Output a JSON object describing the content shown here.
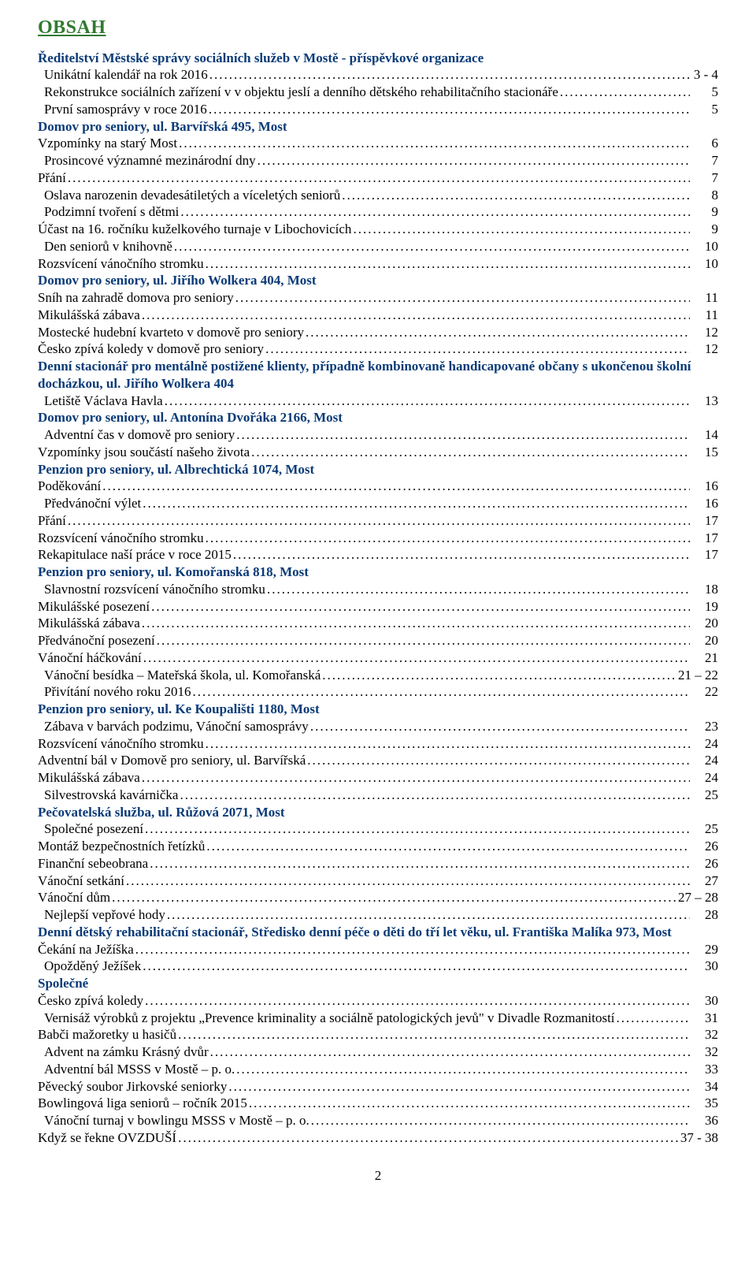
{
  "title": "OBSAH",
  "page_number": "2",
  "colors": {
    "heading_green": "#317a31",
    "section_blue": "#0b3b78",
    "text": "#000000",
    "bg": "#ffffff"
  },
  "sections": [
    {
      "heading": "Ředitelství Městské správy sociálních služeb v Mostě - příspěvkové organizace",
      "entries": [
        {
          "label": "Unikátní kalendář na rok 2016",
          "page": "3 - 4",
          "indent": true
        },
        {
          "label": "Rekonstrukce sociálních zařízení v v objektu jeslí a denního dětského rehabilitačního stacionáře",
          "page": "5",
          "indent": true
        },
        {
          "label": "První samosprávy v roce 2016",
          "page": "5",
          "indent": true
        }
      ]
    },
    {
      "heading": "Domov pro seniory, ul. Barvířská 495, Most",
      "entries": [
        {
          "label": "Vzpomínky na starý Most",
          "page": "6",
          "indent": false
        },
        {
          "label": "Prosincové významné mezinárodní dny",
          "page": "7",
          "indent": true
        },
        {
          "label": "Přání",
          "page": "7",
          "indent": false
        },
        {
          "label": "Oslava narozenin devadesátiletých a víceletých seniorů",
          "page": "8",
          "indent": true
        },
        {
          "label": "Podzimní tvoření s dětmi",
          "page": "9",
          "indent": true
        },
        {
          "label": "Účast na 16. ročníku kuželkového turnaje v Libochovicích",
          "page": "9",
          "indent": false
        },
        {
          "label": "Den seniorů v knihovně",
          "page": "10",
          "indent": true
        },
        {
          "label": "Rozsvícení vánočního stromku",
          "page": "10",
          "indent": false
        }
      ]
    },
    {
      "heading": "Domov pro seniory, ul. Jiřího Wolkera 404, Most",
      "entries": [
        {
          "label": "Sníh na zahradě domova pro seniory",
          "page": "11",
          "indent": false
        },
        {
          "label": "Mikulášská zábava",
          "page": "11",
          "indent": false
        },
        {
          "label": "Mostecké hudební kvarteto v domově pro seniory",
          "page": "12",
          "indent": false
        },
        {
          "label": "Česko zpívá koledy v domově pro seniory",
          "page": "12",
          "indent": false
        }
      ]
    },
    {
      "heading": "Denní stacionář pro mentálně postižené klienty, případně kombinovaně handicapované občany s ukončenou školní docházkou, ul. Jiřího Wolkera 404",
      "entries": [
        {
          "label": "Letiště Václava Havla",
          "page": "13",
          "indent": true
        }
      ]
    },
    {
      "heading": "Domov pro seniory, ul. Antonína Dvořáka 2166, Most",
      "entries": [
        {
          "label": "Adventní čas v domově pro seniory",
          "page": "14",
          "indent": true
        },
        {
          "label": "Vzpomínky jsou součástí našeho života",
          "page": "15",
          "indent": false
        }
      ]
    },
    {
      "heading": "Penzion pro seniory, ul. Albrechtická 1074, Most",
      "entries": [
        {
          "label": "Poděkování",
          "page": "16",
          "indent": false
        },
        {
          "label": "Předvánoční výlet",
          "page": "16",
          "indent": true
        },
        {
          "label": "Přání",
          "page": "17",
          "indent": false
        },
        {
          "label": "Rozsvícení vánočního stromku",
          "page": "17",
          "indent": false
        },
        {
          "label": "Rekapitulace naší práce v roce 2015",
          "page": "17",
          "indent": false
        }
      ]
    },
    {
      "heading": "Penzion pro seniory, ul. Komořanská 818, Most",
      "entries": [
        {
          "label": "Slavnostní rozsvícení vánočního stromku",
          "page": "18",
          "indent": true
        },
        {
          "label": "Mikulášské posezení",
          "page": "19",
          "indent": false
        },
        {
          "label": "Mikulášská zábava",
          "page": "20",
          "indent": false
        },
        {
          "label": "Předvánoční posezení",
          "page": "20",
          "indent": false
        },
        {
          "label": "Vánoční háčkování",
          "page": "21",
          "indent": false
        },
        {
          "label": "Vánoční besídka – Mateřská škola, ul. Komořanská",
          "page": "21 – 22",
          "indent": true
        },
        {
          "label": "Přivítání nového roku 2016",
          "page": "22",
          "indent": true
        }
      ]
    },
    {
      "heading": "Penzion pro seniory, ul. Ke Koupališti 1180, Most",
      "entries": [
        {
          "label": "Zábava v barvách podzimu, Vánoční samosprávy",
          "page": "23",
          "indent": true
        },
        {
          "label": "Rozsvícení vánočního stromku",
          "page": "24",
          "indent": false
        },
        {
          "label": "Adventní bál v Domově pro seniory, ul. Barvířská",
          "page": "24",
          "indent": false
        },
        {
          "label": "Mikulášská zábava",
          "page": "24",
          "indent": false
        },
        {
          "label": "Silvestrovská kavárnička",
          "page": "25",
          "indent": true
        }
      ]
    },
    {
      "heading": "Pečovatelská služba, ul. Růžová 2071, Most",
      "entries": [
        {
          "label": "Společné posezení",
          "page": "25",
          "indent": true
        },
        {
          "label": "Montáž bezpečnostních řetízků",
          "page": "26",
          "indent": false
        },
        {
          "label": "Finanční sebeobrana",
          "page": "26",
          "indent": false
        },
        {
          "label": "Vánoční setkání",
          "page": "27",
          "indent": false
        },
        {
          "label": "Vánoční dům",
          "page": "27 – 28",
          "indent": false
        },
        {
          "label": "Nejlepší vepřové hody",
          "page": "28",
          "indent": true
        }
      ]
    },
    {
      "heading": "Denní dětský rehabilitační stacionář, Středisko denní péče o děti do tří let věku, ul. Františka Malíka 973, Most",
      "entries": [
        {
          "label": "Čekání na Ježíška",
          "page": "29",
          "indent": false
        },
        {
          "label": "Opožděný Ježíšek",
          "page": "30",
          "indent": true
        }
      ]
    },
    {
      "heading": "Společné",
      "entries": [
        {
          "label": "Česko zpívá koledy",
          "page": "30",
          "indent": false
        },
        {
          "label": "Vernisáž výrobků z projektu „Prevence kriminality a sociálně patologických jevů\" v Divadle Rozmanitostí",
          "page": "31",
          "indent": true
        },
        {
          "label": "Babči mažoretky u hasičů",
          "page": "32",
          "indent": false
        },
        {
          "label": "Advent na zámku Krásný dvůr",
          "page": "32",
          "indent": true
        },
        {
          "label": "Adventní bál MSSS v Mostě – p. o.",
          "page": "33",
          "indent": true
        },
        {
          "label": "Pěvecký soubor Jirkovské seniorky",
          "page": "34",
          "indent": false
        },
        {
          "label": "Bowlingová liga seniorů – ročník 2015",
          "page": "35",
          "indent": false
        },
        {
          "label": "Vánoční turnaj v bowlingu MSSS v Mostě – p. o.",
          "page": "36",
          "indent": true
        },
        {
          "label": "Když se řekne OVZDUŠÍ",
          "page": "37 - 38",
          "indent": false
        }
      ]
    }
  ]
}
